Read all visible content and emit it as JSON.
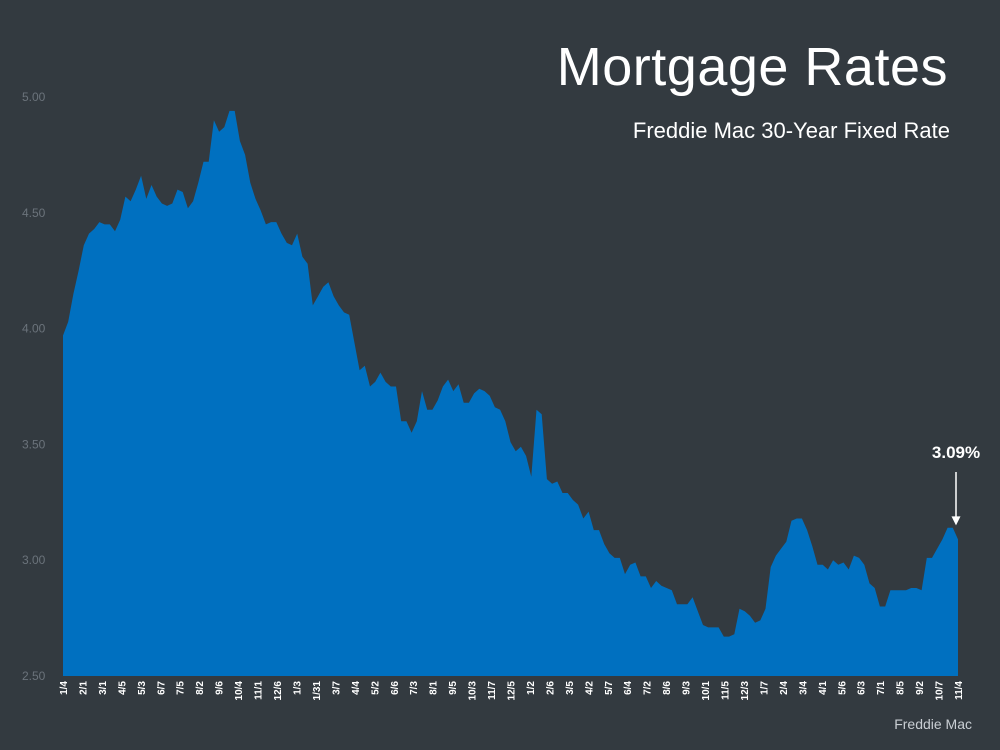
{
  "header": {
    "title": "Mortgage Rates",
    "subtitle": "Freddie Mac 30-Year Fixed Rate"
  },
  "footer": {
    "source": "Freddie Mac"
  },
  "colors": {
    "background": "#333a40",
    "area": "#0070c0",
    "accent": "#ffffff"
  },
  "chart_data": {
    "type": "area",
    "title": "Mortgage Rates",
    "subtitle": "Freddie Mac 30-Year Fixed Rate",
    "xlabel": "",
    "ylabel": "",
    "ylim": [
      2.5,
      5.0
    ],
    "yticks": [
      "2.50",
      "3.00",
      "3.50",
      "4.00",
      "4.50",
      "5.00"
    ],
    "grid": false,
    "legend": "none",
    "x_ticks": [
      "1/4",
      "2/1",
      "3/1",
      "4/5",
      "5/3",
      "6/7",
      "7/5",
      "8/2",
      "9/6",
      "10/4",
      "11/1",
      "12/6",
      "1/3",
      "1/31",
      "3/7",
      "4/4",
      "5/2",
      "6/6",
      "7/3",
      "8/1",
      "9/5",
      "10/3",
      "11/7",
      "12/5",
      "1/2",
      "2/6",
      "3/5",
      "4/2",
      "5/7",
      "6/4",
      "7/2",
      "8/6",
      "9/3",
      "10/1",
      "11/5",
      "12/3",
      "1/7",
      "2/4",
      "3/4",
      "4/1",
      "5/6",
      "6/3",
      "7/1",
      "8/5",
      "9/2",
      "10/7",
      "11/4"
    ],
    "values": [
      3.97,
      4.03,
      4.15,
      4.25,
      4.36,
      4.41,
      4.43,
      4.46,
      4.45,
      4.45,
      4.42,
      4.47,
      4.57,
      4.55,
      4.6,
      4.66,
      4.56,
      4.62,
      4.57,
      4.54,
      4.53,
      4.54,
      4.6,
      4.59,
      4.52,
      4.55,
      4.63,
      4.72,
      4.72,
      4.9,
      4.85,
      4.87,
      4.94,
      4.94,
      4.81,
      4.75,
      4.63,
      4.56,
      4.51,
      4.45,
      4.46,
      4.46,
      4.41,
      4.37,
      4.36,
      4.41,
      4.31,
      4.28,
      4.1,
      4.14,
      4.18,
      4.2,
      4.14,
      4.1,
      4.07,
      4.06,
      3.94,
      3.82,
      3.84,
      3.75,
      3.77,
      3.81,
      3.77,
      3.75,
      3.75,
      3.6,
      3.6,
      3.55,
      3.6,
      3.73,
      3.65,
      3.65,
      3.69,
      3.75,
      3.78,
      3.73,
      3.76,
      3.68,
      3.68,
      3.72,
      3.74,
      3.73,
      3.71,
      3.66,
      3.65,
      3.6,
      3.51,
      3.47,
      3.49,
      3.45,
      3.36,
      3.65,
      3.63,
      3.35,
      3.33,
      3.34,
      3.29,
      3.29,
      3.26,
      3.24,
      3.18,
      3.21,
      3.13,
      3.13,
      3.07,
      3.03,
      3.01,
      3.01,
      2.94,
      2.98,
      2.99,
      2.93,
      2.93,
      2.88,
      2.91,
      2.89,
      2.88,
      2.87,
      2.81,
      2.81,
      2.81,
      2.84,
      2.78,
      2.72,
      2.71,
      2.71,
      2.71,
      2.67,
      2.67,
      2.68,
      2.79,
      2.78,
      2.76,
      2.73,
      2.74,
      2.79,
      2.97,
      3.02,
      3.05,
      3.08,
      3.17,
      3.18,
      3.18,
      3.13,
      3.06,
      2.98,
      2.98,
      2.96,
      3.0,
      2.98,
      2.99,
      2.96,
      3.02,
      3.01,
      2.98,
      2.9,
      2.88,
      2.8,
      2.8,
      2.87,
      2.87,
      2.87,
      2.87,
      2.88,
      2.88,
      2.87,
      3.01,
      3.01,
      3.05,
      3.09,
      3.14,
      3.14,
      3.09
    ],
    "annotation": {
      "label": "3.09%",
      "value": 3.09,
      "at": "11/4"
    }
  }
}
